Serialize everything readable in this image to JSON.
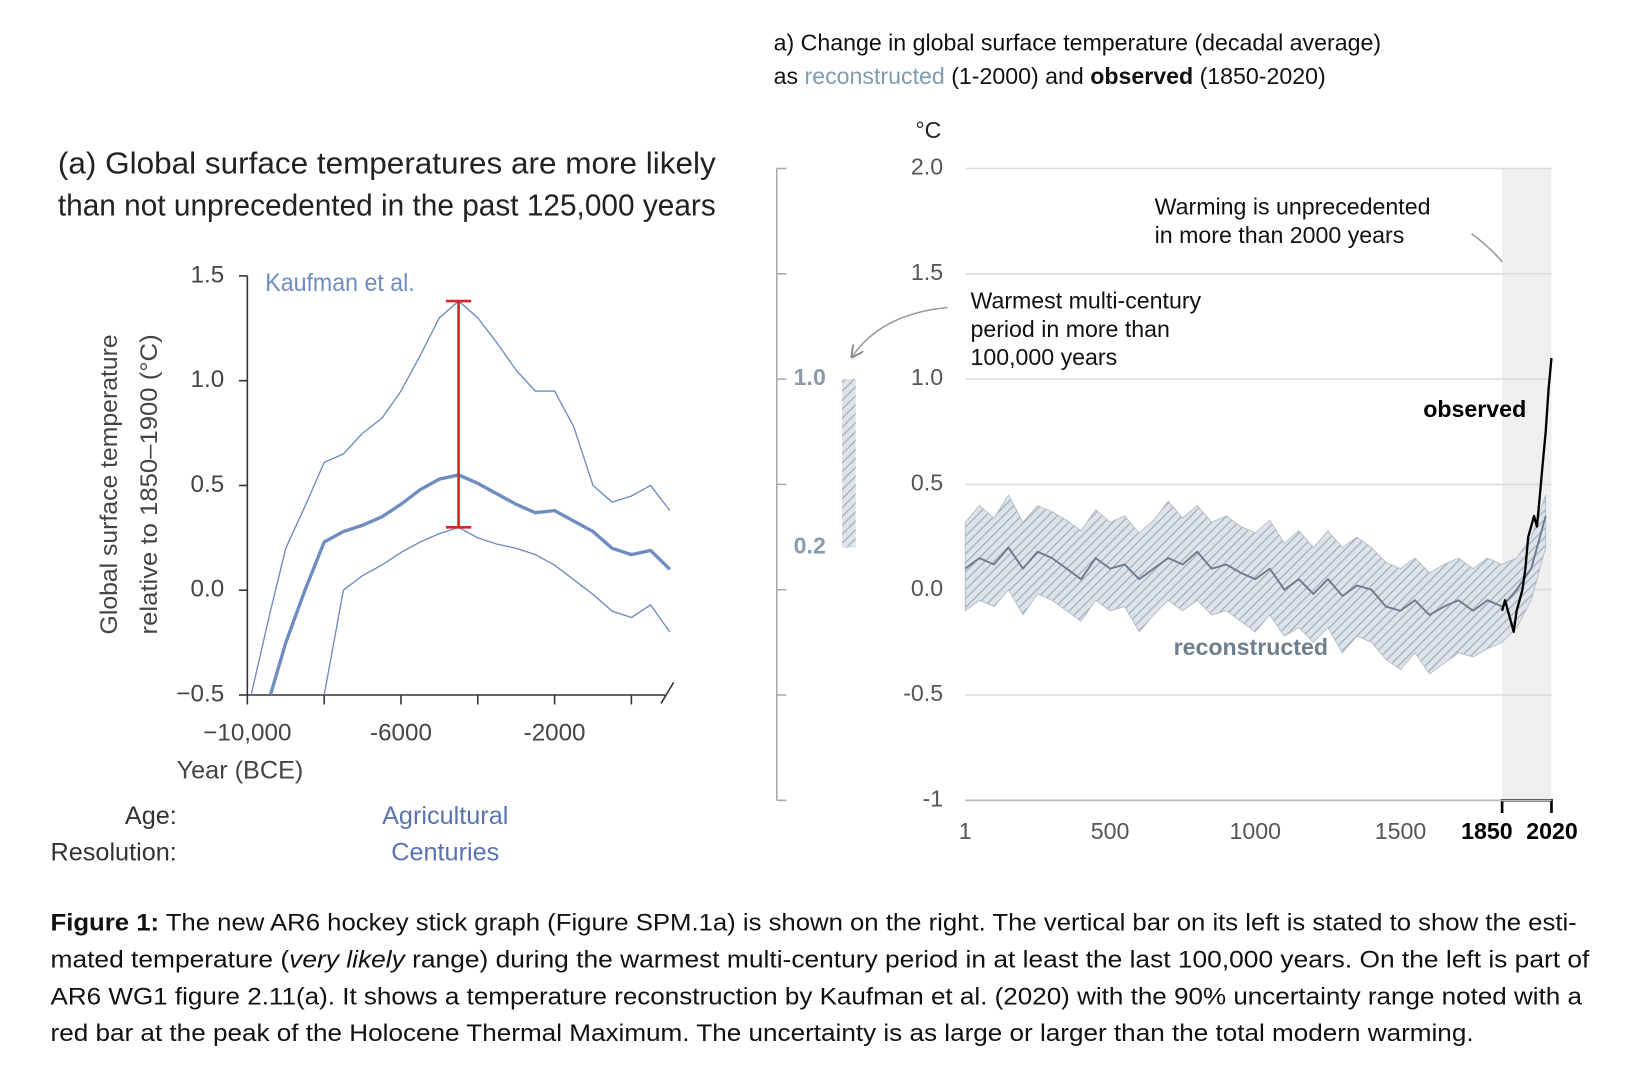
{
  "chart_data": [
    {
      "type": "line",
      "title": [
        "(a) Global surface temperatures are more likely",
        "than not unprecedented in the past 125,000 years"
      ],
      "ylabel": [
        "Global surface temperature",
        "relative to 1850–1900 (°C)"
      ],
      "xlabel": "Year (BCE)",
      "xlim": [
        -10000,
        1100
      ],
      "xticks": [
        {
          "value": -10000,
          "label": "−10,000"
        },
        -6000,
        -2000
      ],
      "ylim": [
        -0.5,
        1.5
      ],
      "yticks": [
        1.5,
        {
          "value": 1,
          "label": "1.0"
        },
        0.5,
        {
          "value": 0,
          "label": "0.0"
        },
        {
          "value": -0.5,
          "label": "−0.5"
        }
      ],
      "x": [
        -9900,
        -9400,
        -9000,
        -8500,
        -8000,
        -7500,
        -7000,
        -6500,
        -6000,
        -5500,
        -5000,
        -4500,
        -4000,
        -3500,
        -3000,
        -2500,
        -2000,
        -1500,
        -1000,
        -500,
        0,
        500,
        1000
      ],
      "series": [
        {
          "name": "Kaufman et al.",
          "color": "#6f8cc0",
          "values": [
            null,
            -0.5,
            -0.25,
            0.0,
            0.23,
            0.28,
            0.31,
            0.35,
            0.41,
            0.48,
            0.53,
            0.55,
            0.51,
            0.46,
            0.41,
            0.37,
            0.38,
            0.33,
            0.28,
            0.2,
            0.17,
            0.19,
            0.1
          ]
        },
        {
          "color": "#6f8cc0",
          "values": [
            -0.5,
            -0.1,
            0.2,
            0.4,
            0.61,
            0.65,
            0.75,
            0.82,
            0.95,
            1.12,
            1.3,
            1.38,
            1.3,
            1.18,
            1.05,
            0.95,
            0.95,
            0.78,
            0.5,
            0.42,
            0.45,
            0.5,
            0.38
          ]
        },
        {
          "color": "#6f8cc0",
          "values": [
            null,
            null,
            null,
            null,
            -0.5,
            0.0,
            0.07,
            0.12,
            0.18,
            0.23,
            0.27,
            0.3,
            0.25,
            0.22,
            0.2,
            0.17,
            0.12,
            0.05,
            -0.02,
            -0.1,
            -0.13,
            -0.07,
            -0.2
          ]
        }
      ],
      "error_bar": {
        "x": -4500,
        "low": 0.3,
        "high": 1.38,
        "color": "#d62728"
      },
      "rows": [
        {
          "label": "Age:",
          "value": "Agricultural"
        },
        {
          "label": "Resolution:",
          "value": "Centuries"
        }
      ]
    },
    {
      "type": "line",
      "title": "a) Change in global surface temperature (decadal average)",
      "subtitle": [
        {
          "text": "as "
        },
        {
          "text": "reconstructed",
          "color": "#7f9bb0"
        },
        {
          "text": " (1-2000) and "
        },
        {
          "text": "observed",
          "style": "bold"
        },
        {
          "text": " (1850-2020)"
        }
      ],
      "unit": "°C",
      "xlim": [
        1,
        2020
      ],
      "xticks": [
        1,
        500,
        1000,
        1500,
        {
          "value": 1850,
          "label": "1850",
          "bold": true
        },
        {
          "value": 2020,
          "label": "2020",
          "bold": true
        }
      ],
      "ylim": [
        -1,
        2
      ],
      "yticks": [
        {
          "value": 2,
          "label": "2.0"
        },
        1.5,
        {
          "value": 1,
          "label": "1.0"
        },
        0.5,
        {
          "value": 0,
          "label": "0.0"
        },
        -0.5,
        -1
      ],
      "grid": true,
      "series": [
        {
          "name": "reconstructed",
          "color": "#6b7c8c",
          "band_color": "#aebbc7",
          "x": [
            1,
            50,
            100,
            150,
            200,
            250,
            300,
            350,
            400,
            450,
            500,
            550,
            600,
            650,
            700,
            750,
            800,
            850,
            900,
            950,
            1000,
            1050,
            1100,
            1150,
            1200,
            1250,
            1300,
            1350,
            1400,
            1450,
            1500,
            1550,
            1600,
            1650,
            1700,
            1750,
            1800,
            1850,
            1900,
            1950,
            2000
          ],
          "values": [
            0.1,
            0.15,
            0.12,
            0.2,
            0.1,
            0.18,
            0.15,
            0.1,
            0.05,
            0.15,
            0.1,
            0.12,
            0.05,
            0.1,
            0.15,
            0.12,
            0.18,
            0.1,
            0.12,
            0.08,
            0.05,
            0.1,
            0.0,
            0.05,
            -0.02,
            0.05,
            -0.03,
            0.02,
            0.0,
            -0.08,
            -0.1,
            -0.05,
            -0.12,
            -0.08,
            -0.05,
            -0.1,
            -0.05,
            -0.08,
            0.0,
            0.1,
            0.35
          ],
          "upper": [
            0.32,
            0.4,
            0.34,
            0.45,
            0.32,
            0.4,
            0.37,
            0.33,
            0.28,
            0.38,
            0.32,
            0.35,
            0.27,
            0.33,
            0.42,
            0.34,
            0.4,
            0.32,
            0.35,
            0.3,
            0.27,
            0.33,
            0.22,
            0.28,
            0.2,
            0.28,
            0.2,
            0.25,
            0.2,
            0.13,
            0.1,
            0.15,
            0.08,
            0.12,
            0.15,
            0.1,
            0.15,
            0.12,
            0.15,
            0.25,
            0.45
          ],
          "lower": [
            -0.1,
            -0.05,
            -0.08,
            0.0,
            -0.12,
            -0.02,
            -0.05,
            -0.1,
            -0.15,
            -0.05,
            -0.1,
            -0.08,
            -0.2,
            -0.12,
            -0.05,
            -0.1,
            -0.05,
            -0.12,
            -0.1,
            -0.15,
            -0.2,
            -0.12,
            -0.22,
            -0.18,
            -0.25,
            -0.18,
            -0.3,
            -0.22,
            -0.25,
            -0.33,
            -0.38,
            -0.3,
            -0.4,
            -0.35,
            -0.3,
            -0.32,
            -0.28,
            -0.25,
            -0.18,
            -0.05,
            0.2
          ]
        },
        {
          "name": "observed",
          "color": "#000000",
          "x": [
            1850,
            1860,
            1870,
            1880,
            1890,
            1900,
            1910,
            1920,
            1930,
            1940,
            1950,
            1960,
            1970,
            1980,
            1990,
            2000,
            2010,
            2020
          ],
          "values": [
            -0.1,
            -0.05,
            -0.1,
            -0.15,
            -0.2,
            -0.1,
            -0.05,
            0.0,
            0.1,
            0.25,
            0.3,
            0.35,
            0.3,
            0.45,
            0.6,
            0.75,
            0.95,
            1.1
          ]
        }
      ],
      "annotations": [
        {
          "text": [
            "Warming is unprecedented",
            "in more than 2000 years"
          ]
        },
        {
          "text": [
            "Warmest multi-century",
            "period in more than",
            "100,000 years"
          ]
        }
      ],
      "warmest_period": {
        "values": [
          0.2,
          1.0
        ],
        "value_labels": [
          "0.2",
          "1.0"
        ],
        "color": "#8a9bab"
      }
    }
  ],
  "caption": {
    "lines": [
      [
        {
          "text": "Figure 1:",
          "style": "bold"
        },
        {
          "text": " The new AR6 hockey stick graph (Figure SPM.1a) is shown on the right. The vertical bar on its left is stated to show the esti-"
        }
      ],
      [
        {
          "text": "mated temperature ("
        },
        {
          "text": "very likely",
          "style": "italic"
        },
        {
          "text": " range) during the warmest multi-century period in at least the last 100,000 years. On the left is part of"
        }
      ],
      [
        {
          "text": "AR6 WG1 figure 2.11(a). It shows a temperature reconstruction by Kaufman et al. (2020) with the 90% uncertainty range noted with a"
        }
      ],
      [
        {
          "text": "red bar at the peak of the Holocene Thermal Maximum. The uncertainty is as large or larger than the total modern warming."
        }
      ]
    ]
  }
}
